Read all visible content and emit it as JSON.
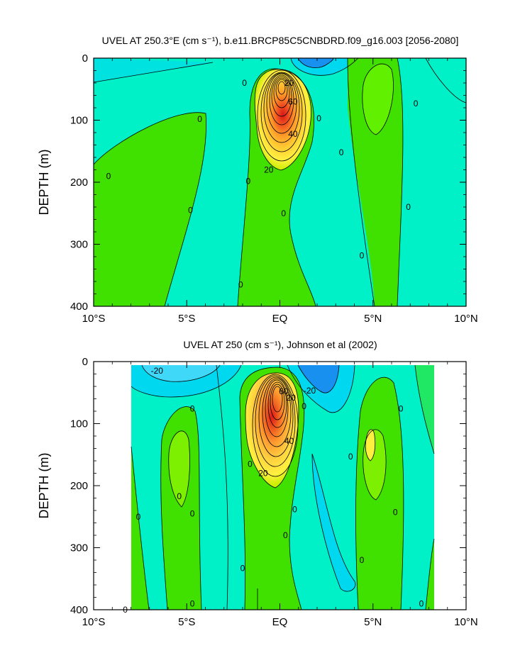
{
  "chart_data": [
    {
      "type": "heatmap",
      "panel": "top",
      "title": "UVEL AT 250.3°E (cm s⁻¹), b.e11.BRCP85C5CNBDRD.f09_g16.003 [2056-2080]",
      "ylabel": "DEPTH (m)",
      "xlabel": "",
      "xlim": [
        -10,
        10
      ],
      "ylim": [
        400,
        0
      ],
      "x_ticks": [
        -10,
        -5,
        0,
        5,
        10
      ],
      "x_tick_labels": [
        "10°S",
        "5°S",
        "EQ",
        "5°N",
        "10°N"
      ],
      "y_ticks": [
        0,
        100,
        200,
        300,
        400
      ],
      "y_tick_labels": [
        "0",
        "100",
        "200",
        "300",
        "400"
      ],
      "contour_interval": 10,
      "core": {
        "lat": 0.0,
        "depth": 85,
        "max_value": 110
      },
      "contour_labels": [
        {
          "text": "20",
          "lat": 0.5,
          "depth": 40
        },
        {
          "text": "60",
          "lat": 0.7,
          "depth": 70
        },
        {
          "text": "40",
          "lat": 0.7,
          "depth": 122
        },
        {
          "text": "20",
          "lat": -0.6,
          "depth": 180
        },
        {
          "text": "0",
          "lat": -1.9,
          "depth": 40
        },
        {
          "text": "0",
          "lat": 2.1,
          "depth": 97
        },
        {
          "text": "0",
          "lat": -4.3,
          "depth": 98
        },
        {
          "text": "0",
          "lat": -9.2,
          "depth": 190
        },
        {
          "text": "0",
          "lat": -1.7,
          "depth": 198
        },
        {
          "text": "0",
          "lat": -4.8,
          "depth": 245
        },
        {
          "text": "0",
          "lat": 0.2,
          "depth": 250
        },
        {
          "text": "0",
          "lat": -2.1,
          "depth": 365
        },
        {
          "text": "0",
          "lat": 3.3,
          "depth": 152
        },
        {
          "text": "0",
          "lat": 4.4,
          "depth": 318
        },
        {
          "text": "0",
          "lat": 7.3,
          "depth": 73
        },
        {
          "text": "0",
          "lat": 6.9,
          "depth": 240
        }
      ],
      "colors": {
        "strong_east": "#e8271e",
        "east": "#ffcc33",
        "weak_east": "#40e000",
        "near_zero": "#00f0c8",
        "west": "#00d8f0",
        "strong_west": "#1890f0"
      }
    },
    {
      "type": "heatmap",
      "panel": "bottom",
      "title": "UVEL AT 250 (cm s⁻¹), Johnson et al (2002)",
      "ylabel": "DEPTH (m)",
      "xlabel": "",
      "xlim": [
        -10,
        10
      ],
      "ylim": [
        400,
        0
      ],
      "data_lat_range": [
        -8,
        8.2
      ],
      "x_ticks": [
        -10,
        -5,
        0,
        5,
        10
      ],
      "x_tick_labels": [
        "10°S",
        "5°S",
        "EQ",
        "5°N",
        "10°N"
      ],
      "y_ticks": [
        0,
        100,
        200,
        300,
        400
      ],
      "y_tick_labels": [
        "0",
        "100",
        "200",
        "300",
        "400"
      ],
      "contour_interval": 10,
      "core": {
        "lat": -0.1,
        "depth": 75,
        "max_value": 100
      },
      "contour_labels": [
        {
          "text": "-20",
          "lat": -6.6,
          "depth": 15
        },
        {
          "text": "-20",
          "lat": 1.6,
          "depth": 47
        },
        {
          "text": "60",
          "lat": 0.2,
          "depth": 48
        },
        {
          "text": "20",
          "lat": 0.6,
          "depth": 58
        },
        {
          "text": "40",
          "lat": 0.5,
          "depth": 128
        },
        {
          "text": "20",
          "lat": -0.9,
          "depth": 180
        },
        {
          "text": "0",
          "lat": 1.3,
          "depth": 72
        },
        {
          "text": "0",
          "lat": -4.7,
          "depth": 76
        },
        {
          "text": "0",
          "lat": -5.4,
          "depth": 217
        },
        {
          "text": "0",
          "lat": -7.6,
          "depth": 250
        },
        {
          "text": "0",
          "lat": -4.7,
          "depth": 245
        },
        {
          "text": "0",
          "lat": -1.6,
          "depth": 165
        },
        {
          "text": "0",
          "lat": 0.8,
          "depth": 238
        },
        {
          "text": "0",
          "lat": 0.3,
          "depth": 280
        },
        {
          "text": "0",
          "lat": -2.0,
          "depth": 333
        },
        {
          "text": "0",
          "lat": -4.7,
          "depth": 390
        },
        {
          "text": "0",
          "lat": -8.3,
          "depth": 400
        },
        {
          "text": "0",
          "lat": 3.8,
          "depth": 153
        },
        {
          "text": "0",
          "lat": 4.4,
          "depth": 320
        },
        {
          "text": "0",
          "lat": 6.5,
          "depth": 76
        },
        {
          "text": "0",
          "lat": 6.2,
          "depth": 243
        },
        {
          "text": "0",
          "lat": 7.6,
          "depth": 390
        }
      ],
      "colors": {
        "strong_east": "#e8271e",
        "east": "#ffcc33",
        "weak_east": "#40e000",
        "near_zero": "#00f0c8",
        "west": "#00d8f0",
        "strong_west": "#1890f0"
      }
    }
  ]
}
